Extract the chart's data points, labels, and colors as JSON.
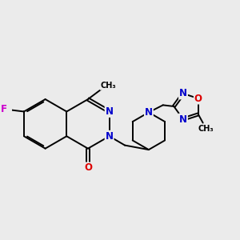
{
  "bg_color": "#ebebeb",
  "bond_color": "#000000",
  "bond_width": 1.4,
  "atom_colors": {
    "N": "#0000cc",
    "O": "#dd0000",
    "F": "#cc00cc",
    "C": "#000000"
  },
  "font_size": 8.5,
  "fig_size": [
    3.0,
    3.0
  ],
  "dpi": 100
}
